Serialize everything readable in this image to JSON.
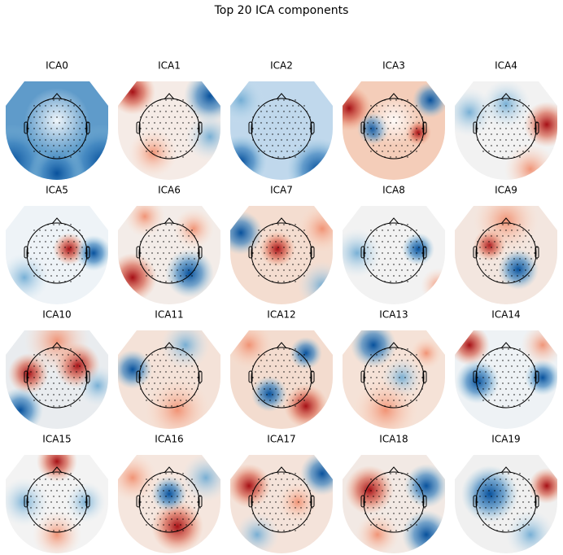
{
  "title": "Top 20 ICA components",
  "components": [
    "ICA0",
    "ICA1",
    "ICA2",
    "ICA3",
    "ICA4",
    "ICA5",
    "ICA6",
    "ICA7",
    "ICA8",
    "ICA9",
    "ICA10",
    "ICA11",
    "ICA12",
    "ICA13",
    "ICA14",
    "ICA15",
    "ICA16",
    "ICA17",
    "ICA18",
    "ICA19"
  ]
}
